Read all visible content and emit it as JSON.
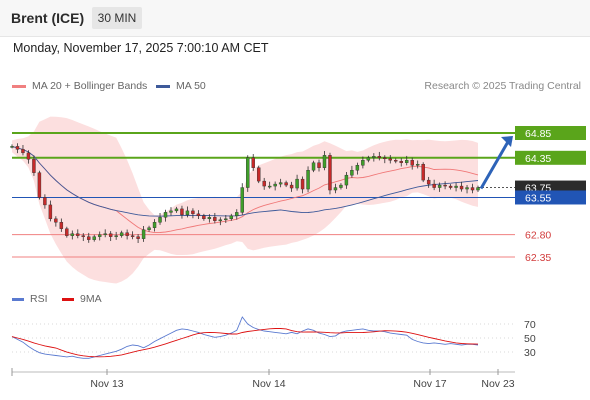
{
  "header": {
    "instrument": "Brent (ICE)",
    "timeframe": "30 MIN"
  },
  "datetime": "Monday, November 17, 2025 7:00:10 AM CET",
  "legend": {
    "ma20": "MA 20 + Bollinger Bands",
    "ma50": "MA 50",
    "credit": "Research © 2025 Trading Central",
    "rsi": "RSI",
    "rsi_ma": "9MA"
  },
  "colors": {
    "green_level": "#5aa51b",
    "blue_level": "#2155b5",
    "red_level": "#f08080",
    "bollinger_fill": "#fbd4d4",
    "ma20": "#f07878",
    "ma50": "#3e5a9a",
    "candle": "#2e2e2e",
    "candle_up": "#3f9e2a",
    "candle_down": "#c62a2a",
    "rsi": "#5a7ad0",
    "rsi_ma": "#dd1111",
    "arrow": "#2d63b8"
  },
  "chart_data": {
    "type": "candlestick",
    "x_ticks": [
      "Nov 13",
      "Nov 14",
      "Nov 17",
      "Nov 23"
    ],
    "price_levels": [
      {
        "label": "64.85",
        "value": 64.85,
        "kind": "resistance",
        "style": "tag-green"
      },
      {
        "label": "64.35",
        "value": 64.35,
        "kind": "resistance",
        "style": "tag-green"
      },
      {
        "label": "63.75",
        "value": 63.75,
        "kind": "last",
        "style": "tag-dark"
      },
      {
        "label": "63.55",
        "value": 63.55,
        "kind": "pivot",
        "style": "tag-blue"
      },
      {
        "label": "62.80",
        "value": 62.8,
        "kind": "support",
        "style": "text-red"
      },
      {
        "label": "62.35",
        "value": 62.35,
        "kind": "support",
        "style": "text-red"
      }
    ],
    "price_ylim": [
      62.0,
      65.2
    ],
    "target_arrow": {
      "from": 63.75,
      "to": 64.85
    },
    "closes": [
      64.58,
      64.52,
      64.45,
      64.32,
      64.05,
      63.55,
      63.4,
      63.12,
      63.05,
      62.92,
      62.78,
      62.82,
      62.78,
      62.76,
      62.7,
      62.76,
      62.8,
      62.82,
      62.76,
      62.78,
      62.84,
      62.78,
      62.76,
      62.72,
      62.9,
      62.94,
      63.05,
      63.15,
      63.25,
      63.28,
      63.32,
      63.2,
      63.28,
      63.22,
      63.18,
      63.12,
      63.15,
      63.08,
      63.1,
      63.12,
      63.18,
      63.25,
      63.75,
      64.35,
      64.15,
      63.88,
      63.78,
      63.78,
      63.82,
      63.85,
      63.8,
      63.74,
      63.92,
      63.72,
      64.1,
      64.25,
      64.15,
      64.4,
      63.7,
      63.75,
      63.8,
      64.0,
      64.1,
      64.2,
      64.3,
      64.35,
      64.38,
      64.35,
      64.33,
      64.3,
      64.28,
      64.25,
      64.3,
      64.2,
      64.22,
      63.9,
      63.82,
      63.75,
      63.8,
      63.78,
      63.75,
      63.78,
      63.72,
      63.75,
      63.7,
      63.75
    ],
    "rsi_levels": [
      70,
      50,
      30
    ],
    "rsi_ylim": [
      15,
      85
    ],
    "rsi": [
      52,
      48,
      44,
      38,
      33,
      29,
      27,
      26,
      25,
      24,
      23,
      24,
      22,
      21,
      21,
      23,
      25,
      27,
      29,
      31,
      34,
      38,
      40,
      39,
      36,
      40,
      45,
      49,
      53,
      57,
      61,
      63,
      62,
      60,
      58,
      55,
      53,
      51,
      52,
      54,
      57,
      61,
      80,
      70,
      65,
      62,
      60,
      59,
      58,
      57,
      56,
      58,
      56,
      60,
      63,
      61,
      57,
      55,
      52,
      53,
      58,
      60,
      61,
      62,
      63,
      61,
      60,
      60,
      59,
      57,
      56,
      55,
      54,
      48,
      45,
      43,
      42,
      43,
      42,
      41,
      42,
      41,
      40,
      41,
      41,
      40
    ]
  }
}
